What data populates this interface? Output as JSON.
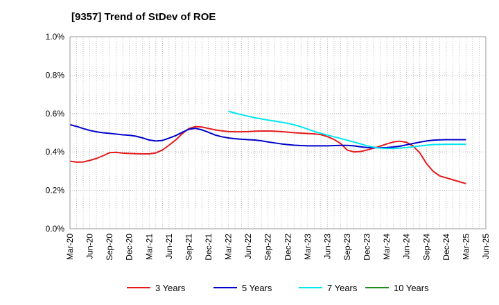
{
  "chart_data": {
    "type": "line",
    "title": "[9357]  Trend of StDev of ROE",
    "xlabel": "",
    "ylabel": "",
    "ylim": [
      0,
      1.0
    ],
    "y_ticks": [
      "0.0%",
      "0.2%",
      "0.4%",
      "0.6%",
      "0.8%",
      "1.0%"
    ],
    "x_tick_labels": [
      "Mar-20",
      "Jun-20",
      "Sep-20",
      "Dec-20",
      "Mar-21",
      "Jun-21",
      "Sep-21",
      "Dec-21",
      "Mar-22",
      "Jun-22",
      "Sep-22",
      "Dec-22",
      "Mar-23",
      "Jun-23",
      "Sep-23",
      "Dec-23",
      "Mar-24",
      "Jun-24",
      "Sep-24",
      "Dec-24",
      "Mar-25",
      "Jun-25"
    ],
    "x_range": [
      "2020-03",
      "2025-06"
    ],
    "grid": true,
    "legend_position": "bottom",
    "series": [
      {
        "name": "3 Years",
        "color": "#e41a1c",
        "x": [
          "2020-03",
          "2020-04",
          "2020-05",
          "2020-06",
          "2020-07",
          "2020-08",
          "2020-09",
          "2020-10",
          "2020-11",
          "2020-12",
          "2021-01",
          "2021-02",
          "2021-03",
          "2021-04",
          "2021-05",
          "2021-06",
          "2021-07",
          "2021-08",
          "2021-09",
          "2021-10",
          "2021-11",
          "2021-12",
          "2022-01",
          "2022-02",
          "2022-03",
          "2022-04",
          "2022-05",
          "2022-06",
          "2022-07",
          "2022-08",
          "2022-09",
          "2022-10",
          "2022-11",
          "2022-12",
          "2023-01",
          "2023-02",
          "2023-03",
          "2023-04",
          "2023-05",
          "2023-06",
          "2023-07",
          "2023-08",
          "2023-09",
          "2023-10",
          "2023-11",
          "2023-12",
          "2024-01",
          "2024-02",
          "2024-03",
          "2024-04",
          "2024-05",
          "2024-06",
          "2024-07",
          "2024-08",
          "2024-09",
          "2024-10",
          "2024-11",
          "2024-12",
          "2025-01",
          "2025-02",
          "2025-03"
        ],
        "values": [
          0.352,
          0.347,
          0.348,
          0.356,
          0.366,
          0.38,
          0.396,
          0.398,
          0.394,
          0.392,
          0.391,
          0.39,
          0.39,
          0.395,
          0.41,
          0.435,
          0.462,
          0.495,
          0.522,
          0.532,
          0.53,
          0.522,
          0.515,
          0.51,
          0.506,
          0.505,
          0.505,
          0.506,
          0.508,
          0.509,
          0.509,
          0.508,
          0.506,
          0.503,
          0.5,
          0.498,
          0.496,
          0.494,
          0.49,
          0.48,
          0.465,
          0.444,
          0.41,
          0.4,
          0.402,
          0.41,
          0.42,
          0.43,
          0.442,
          0.452,
          0.456,
          0.45,
          0.43,
          0.395,
          0.34,
          0.3,
          0.275,
          0.265,
          0.255,
          0.245,
          0.235
        ]
      },
      {
        "name": "5 Years",
        "color": "#0000cc",
        "x": [
          "2020-03",
          "2020-04",
          "2020-05",
          "2020-06",
          "2020-07",
          "2020-08",
          "2020-09",
          "2020-10",
          "2020-11",
          "2020-12",
          "2021-01",
          "2021-02",
          "2021-03",
          "2021-04",
          "2021-05",
          "2021-06",
          "2021-07",
          "2021-08",
          "2021-09",
          "2021-10",
          "2021-11",
          "2021-12",
          "2022-01",
          "2022-02",
          "2022-03",
          "2022-04",
          "2022-05",
          "2022-06",
          "2022-07",
          "2022-08",
          "2022-09",
          "2022-10",
          "2022-11",
          "2022-12",
          "2023-01",
          "2023-02",
          "2023-03",
          "2023-04",
          "2023-05",
          "2023-06",
          "2023-07",
          "2023-08",
          "2023-09",
          "2023-10",
          "2023-11",
          "2023-12",
          "2024-01",
          "2024-02",
          "2024-03",
          "2024-04",
          "2024-05",
          "2024-06",
          "2024-07",
          "2024-08",
          "2024-09",
          "2024-10",
          "2024-11",
          "2024-12",
          "2025-01",
          "2025-02",
          "2025-03"
        ],
        "values": [
          0.542,
          0.533,
          0.522,
          0.512,
          0.505,
          0.5,
          0.497,
          0.493,
          0.489,
          0.487,
          0.482,
          0.473,
          0.462,
          0.457,
          0.46,
          0.472,
          0.485,
          0.502,
          0.518,
          0.523,
          0.515,
          0.502,
          0.488,
          0.479,
          0.473,
          0.469,
          0.466,
          0.464,
          0.462,
          0.458,
          0.452,
          0.447,
          0.442,
          0.438,
          0.435,
          0.433,
          0.432,
          0.432,
          0.432,
          0.432,
          0.433,
          0.434,
          0.434,
          0.432,
          0.427,
          0.423,
          0.422,
          0.422,
          0.423,
          0.426,
          0.43,
          0.437,
          0.444,
          0.451,
          0.457,
          0.461,
          0.463,
          0.464,
          0.464,
          0.464,
          0.464
        ]
      },
      {
        "name": "7 Years",
        "color": "#00e5ee",
        "x": [
          "2022-03",
          "2022-04",
          "2022-05",
          "2022-06",
          "2022-07",
          "2022-08",
          "2022-09",
          "2022-10",
          "2022-11",
          "2022-12",
          "2023-01",
          "2023-02",
          "2023-03",
          "2023-04",
          "2023-05",
          "2023-06",
          "2023-07",
          "2023-08",
          "2023-09",
          "2023-10",
          "2023-11",
          "2023-12",
          "2024-01",
          "2024-02",
          "2024-03",
          "2024-04",
          "2024-05",
          "2024-06",
          "2024-07",
          "2024-08",
          "2024-09",
          "2024-10",
          "2024-11",
          "2024-12",
          "2025-01",
          "2025-02",
          "2025-03"
        ],
        "values": [
          0.612,
          0.602,
          0.594,
          0.586,
          0.578,
          0.572,
          0.566,
          0.561,
          0.555,
          0.549,
          0.541,
          0.531,
          0.519,
          0.507,
          0.497,
          0.488,
          0.479,
          0.47,
          0.461,
          0.452,
          0.442,
          0.432,
          0.425,
          0.42,
          0.418,
          0.418,
          0.42,
          0.423,
          0.427,
          0.431,
          0.435,
          0.438,
          0.439,
          0.44,
          0.44,
          0.44,
          0.44
        ]
      },
      {
        "name": "10 Years",
        "color": "#228b22",
        "x": [],
        "values": []
      }
    ]
  }
}
